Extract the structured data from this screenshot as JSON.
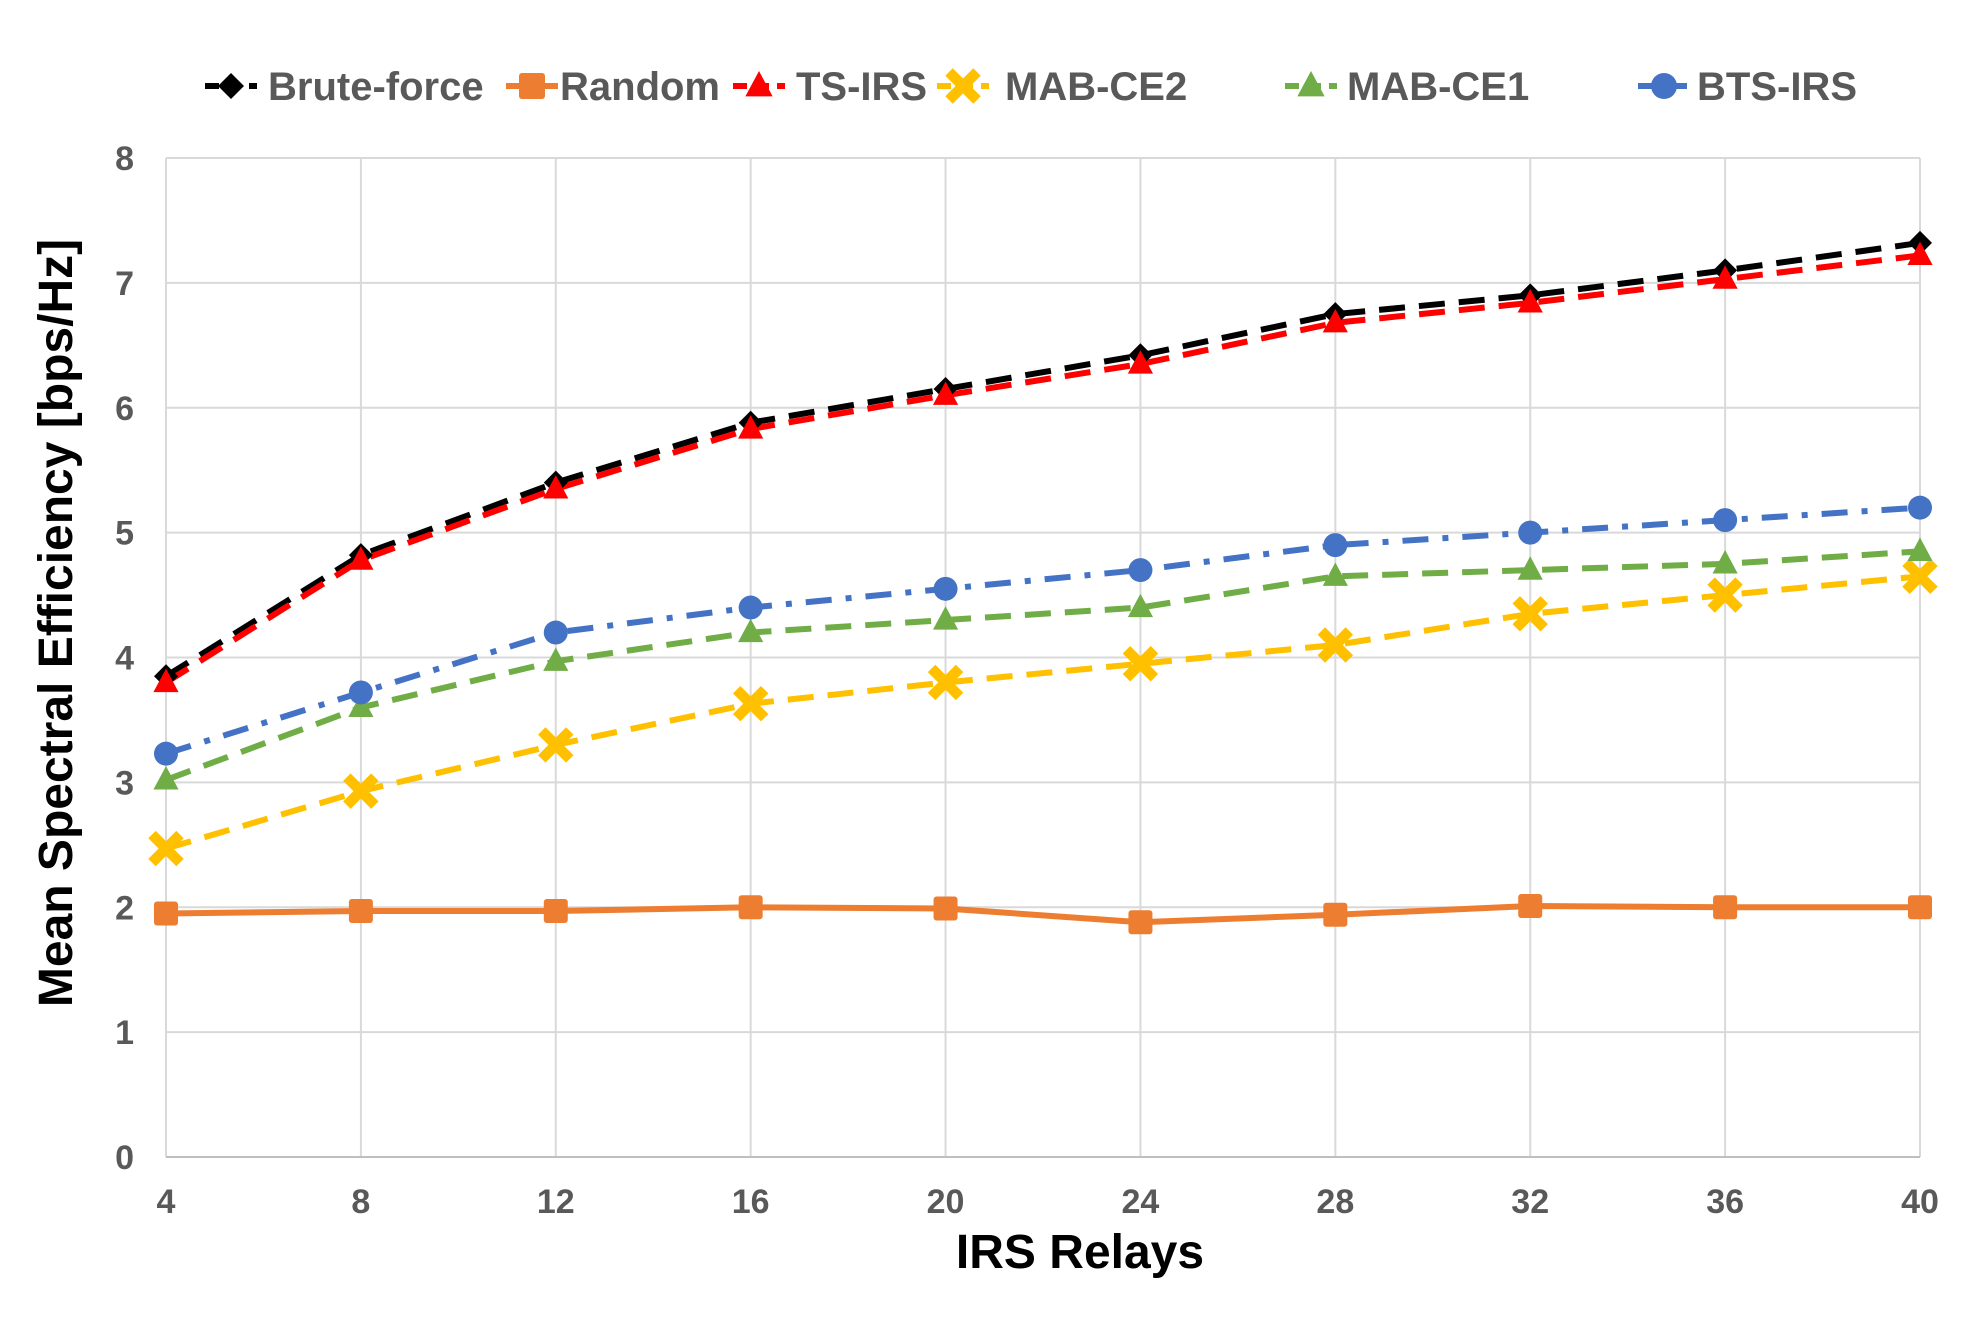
{
  "chart_data": {
    "type": "line",
    "title": "",
    "xlabel": "IRS Relays",
    "ylabel": "Mean Spectral Efficiency [bps/Hz]",
    "x": [
      4,
      8,
      12,
      16,
      20,
      24,
      28,
      32,
      36,
      40
    ],
    "x_tick_labels": [
      "4",
      "8",
      "12",
      "16",
      "20",
      "24",
      "28",
      "32",
      "36",
      "40"
    ],
    "ylim": [
      0,
      8
    ],
    "y_tick_labels": [
      "0",
      "1",
      "2",
      "3",
      "4",
      "5",
      "6",
      "7",
      "8"
    ],
    "grid": true,
    "legend_position": "top",
    "series": [
      {
        "name": "Brute-force",
        "color": "#000000",
        "marker": "diamond",
        "dash": "dashed",
        "values": [
          3.85,
          4.82,
          5.4,
          5.88,
          6.15,
          6.42,
          6.75,
          6.9,
          7.1,
          7.32
        ]
      },
      {
        "name": "Random",
        "color": "#ED7D31",
        "marker": "square",
        "dash": "solid",
        "values": [
          1.95,
          1.97,
          1.97,
          2.0,
          1.99,
          1.88,
          1.94,
          2.01,
          2.0,
          2.0
        ]
      },
      {
        "name": "TS-IRS",
        "color": "#FF0000",
        "marker": "triangle",
        "dash": "dashed",
        "values": [
          3.8,
          4.78,
          5.35,
          5.83,
          6.1,
          6.35,
          6.68,
          6.84,
          7.03,
          7.22
        ]
      },
      {
        "name": "MAB-CE2",
        "color": "#FFC000",
        "marker": "x",
        "dash": "dashed",
        "values": [
          2.47,
          2.93,
          3.3,
          3.63,
          3.8,
          3.95,
          4.1,
          4.35,
          4.5,
          4.65
        ]
      },
      {
        "name": "MAB-CE1",
        "color": "#70AD47",
        "marker": "triangle",
        "dash": "dashed",
        "values": [
          3.02,
          3.6,
          3.97,
          4.2,
          4.3,
          4.4,
          4.65,
          4.7,
          4.75,
          4.85
        ]
      },
      {
        "name": "BTS-IRS",
        "color": "#4472C4",
        "marker": "circle",
        "dash": "dashdot",
        "values": [
          3.23,
          3.72,
          4.2,
          4.4,
          4.55,
          4.7,
          4.9,
          5.0,
          5.1,
          5.2
        ]
      }
    ]
  }
}
